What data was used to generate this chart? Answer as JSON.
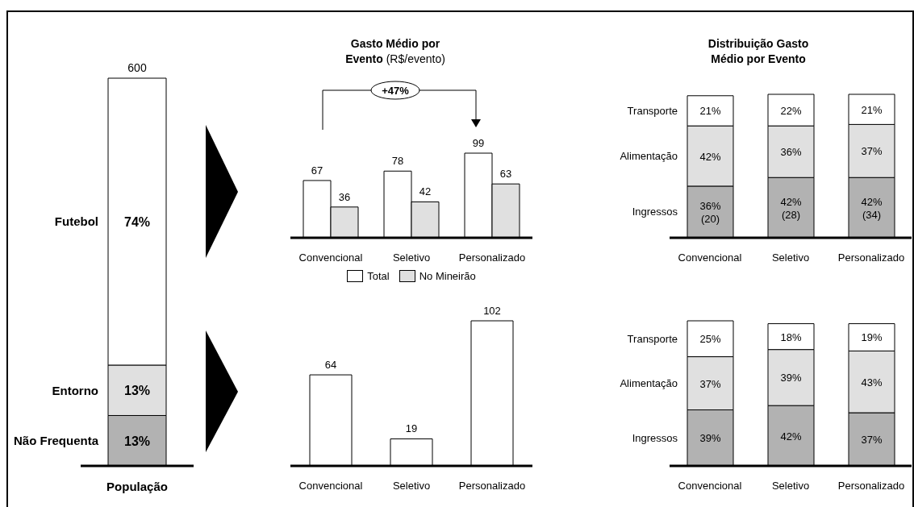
{
  "chart_data": [
    {
      "type": "bar",
      "stacked": true,
      "categories": [
        "População"
      ],
      "series": [
        {
          "name": "Não Frequenta",
          "color": "#b2b2b2",
          "values": [
            13
          ],
          "value_labels": [
            "13%"
          ]
        },
        {
          "name": "Entorno",
          "color": "#e0e0e0",
          "values": [
            13
          ],
          "value_labels": [
            "13%"
          ]
        },
        {
          "name": "Futebol",
          "color": "#ffffff",
          "values": [
            74
          ],
          "value_labels": [
            "74%"
          ]
        }
      ],
      "annotations": [
        "600"
      ]
    },
    {
      "type": "bar",
      "title": "Gasto Médio por Evento",
      "subtitle": "(R$/evento)",
      "categories": [
        "Convencional",
        "Seletivo",
        "Personalizado"
      ],
      "series": [
        {
          "name": "Total",
          "color": "#ffffff",
          "values": [
            67,
            78,
            99
          ]
        },
        {
          "name": "No Mineirão",
          "color": "#e0e0e0",
          "values": [
            36,
            42,
            63
          ]
        }
      ],
      "data_labels": true,
      "legend": "bottom",
      "annotations": [
        "+47%"
      ]
    },
    {
      "type": "bar",
      "categories": [
        "Convencional",
        "Seletivo",
        "Personalizado"
      ],
      "series": [
        {
          "color": "#ffffff",
          "values": [
            64,
            19,
            102
          ]
        }
      ],
      "data_labels": true
    },
    {
      "type": "bar",
      "stacked": true,
      "title": "Distribuição Gasto Médio por Evento",
      "categories": [
        "Convencional",
        "Seletivo",
        "Personalizado"
      ],
      "series": [
        {
          "name": "Ingressos",
          "color": "#b2b2b2",
          "values": [
            36,
            42,
            42
          ],
          "value_labels": [
            "36%\n(20)",
            "42%\n(28)",
            "42%\n(34)"
          ]
        },
        {
          "name": "Alimentação",
          "color": "#e0e0e0",
          "values": [
            42,
            36,
            37
          ],
          "value_labels": [
            "42%",
            "36%",
            "37%"
          ]
        },
        {
          "name": "Transporte",
          "color": "#ffffff",
          "values": [
            21,
            22,
            21
          ],
          "value_labels": [
            "21%",
            "22%",
            "21%"
          ]
        }
      ]
    },
    {
      "type": "bar",
      "stacked": true,
      "categories": [
        "Convencional",
        "Seletivo",
        "Personalizado"
      ],
      "series": [
        {
          "name": "Ingressos",
          "color": "#b2b2b2",
          "values": [
            39,
            42,
            37
          ],
          "value_labels": [
            "39%",
            "42%",
            "37%"
          ]
        },
        {
          "name": "Alimentação",
          "color": "#e0e0e0",
          "values": [
            37,
            39,
            43
          ],
          "value_labels": [
            "37%",
            "39%",
            "43%"
          ]
        },
        {
          "name": "Transporte",
          "color": "#ffffff",
          "values": [
            25,
            18,
            19
          ],
          "value_labels": [
            "25%",
            "18%",
            "19%"
          ]
        }
      ]
    }
  ]
}
